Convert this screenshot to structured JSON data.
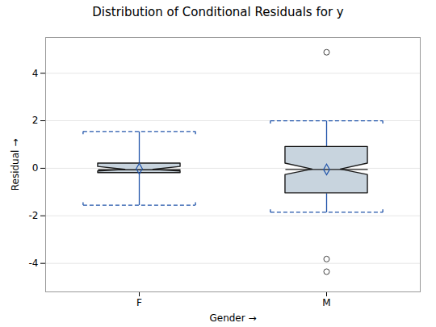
{
  "chart_data": {
    "type": "box",
    "title": "Distribution of Conditional Residuals for y",
    "xlabel": "Gender",
    "ylabel": "Residual",
    "categories": [
      "F",
      "M"
    ],
    "boxes": [
      {
        "q1": -0.2,
        "median": -0.06,
        "q3": 0.2,
        "whisker_low": -1.55,
        "whisker_high": 1.55,
        "notch_low": -0.13,
        "notch_high": 0.06,
        "ci_low": -1.55,
        "ci_high": 1.55,
        "mean": -0.02,
        "outliers": []
      },
      {
        "q1": -1.05,
        "median": -0.05,
        "q3": 0.9,
        "whisker_low": -1.85,
        "whisker_high": 2.0,
        "notch_low": -0.28,
        "notch_high": 0.2,
        "ci_low": -1.85,
        "ci_high": 2.0,
        "mean": -0.05,
        "outliers": [
          4.88,
          -3.82,
          -4.35
        ]
      }
    ],
    "ylim": [
      -5.2,
      5.5
    ],
    "yticks": [
      -4,
      -2,
      0,
      2,
      4
    ],
    "grid": true
  }
}
